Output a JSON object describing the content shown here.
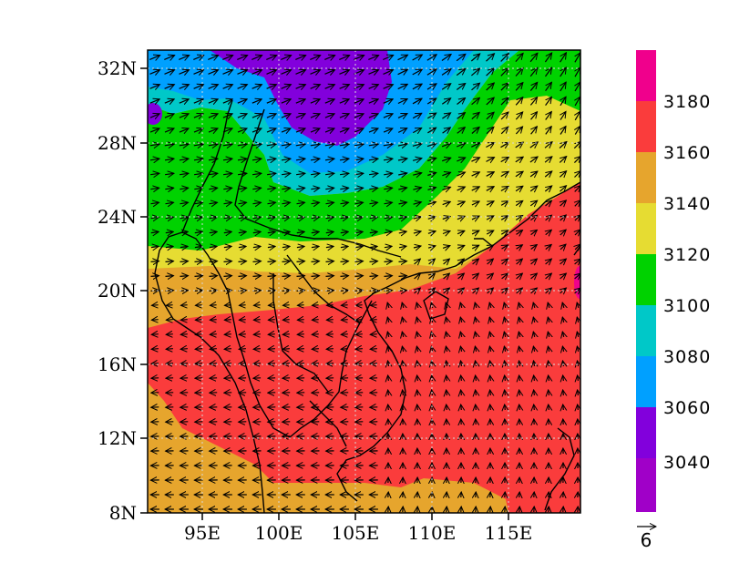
{
  "map": {
    "lat_ticks": [
      "32N",
      "28N",
      "24N",
      "20N",
      "16N",
      "12N",
      "8N"
    ],
    "lon_ticks": [
      "95E",
      "100E",
      "105E",
      "110E",
      "115E"
    ],
    "lat_range": [
      8,
      33
    ],
    "lon_range": [
      91.5,
      119.5
    ]
  },
  "colorbar": {
    "labels": [
      "3180",
      "3160",
      "3140",
      "3120",
      "3100",
      "3080",
      "3060",
      "3040"
    ],
    "bins": [
      {
        "color": "#f0008c"
      },
      {
        "color": "#fa3c3c"
      },
      {
        "color": "#e6a52d"
      },
      {
        "color": "#e6dc32"
      },
      {
        "color": "#00d200"
      },
      {
        "color": "#00c8c8"
      },
      {
        "color": "#00a0ff"
      },
      {
        "color": "#8200dc"
      },
      {
        "color": "#a000c8"
      }
    ]
  },
  "reference_vector": {
    "value": "6"
  },
  "colors": {
    "purple": "#8200dc",
    "blue": "#00a0ff",
    "cyan": "#00c8c8",
    "green": "#00d200",
    "yellow": "#e6dc32",
    "orange": "#e6a52d",
    "red": "#fa3c3c"
  }
}
